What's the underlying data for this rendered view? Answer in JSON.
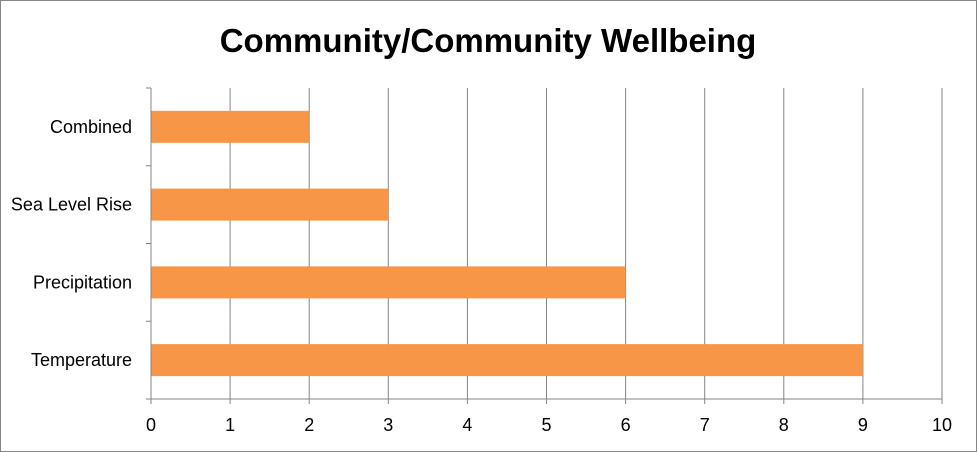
{
  "chart_data": {
    "type": "bar",
    "orientation": "horizontal",
    "title": "Community/Community Wellbeing",
    "categories": [
      "Temperature",
      "Precipitation",
      "Sea Level Rise",
      "Combined"
    ],
    "values": [
      9,
      6,
      3,
      2
    ],
    "xlim": [
      0,
      10
    ],
    "x_ticks": [
      "0",
      "1",
      "2",
      "3",
      "4",
      "5",
      "6",
      "7",
      "8",
      "9",
      "10"
    ],
    "grid": "vertical gridlines",
    "legend": "none",
    "bar_color": "#F79646",
    "gridline_color": "#868686"
  }
}
